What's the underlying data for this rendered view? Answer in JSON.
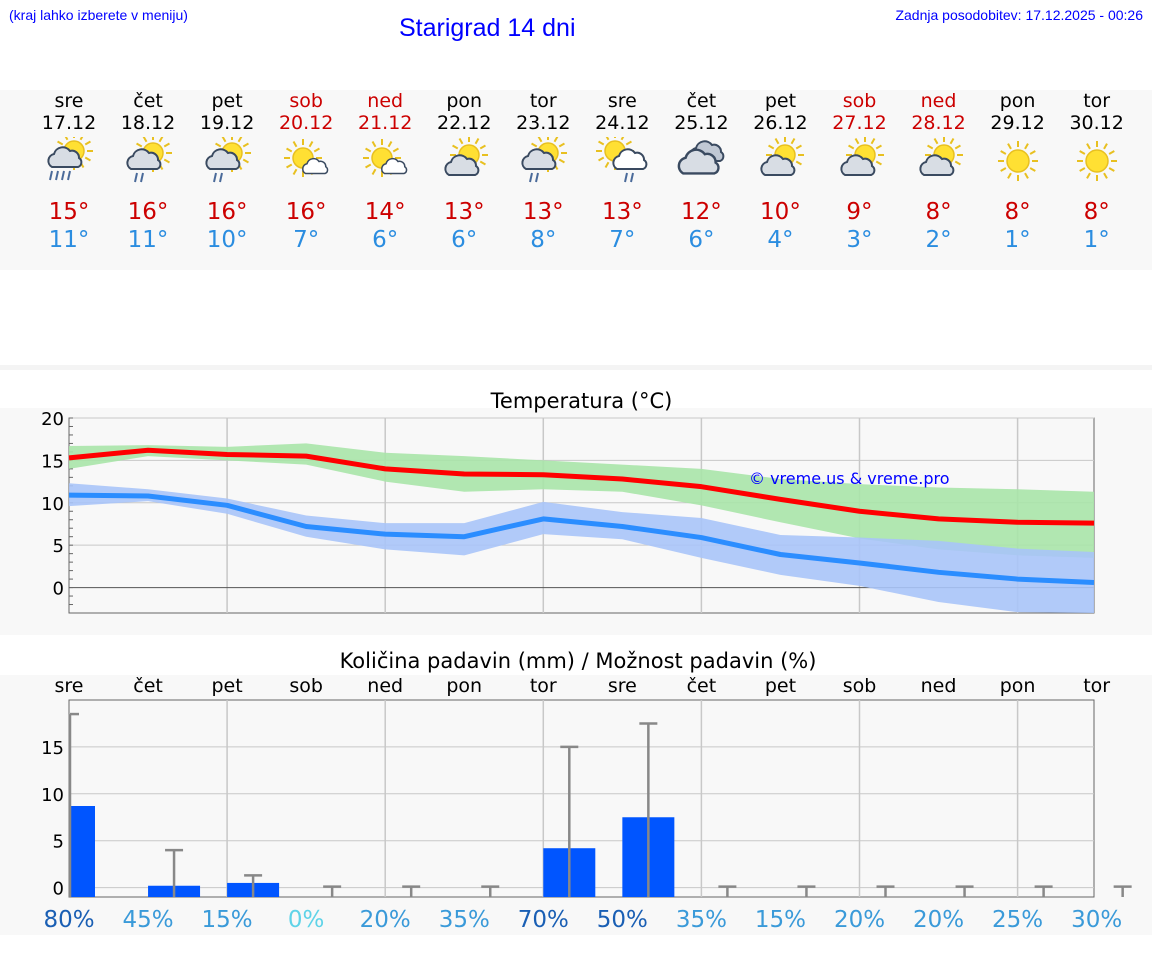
{
  "header": {
    "hint": "(kraj lahko izberete v meniju)",
    "title": "Starigrad 14 dni",
    "updated": "Zadnja posodobitev: 17.12.2025 - 00:26"
  },
  "colors": {
    "max": "#cc0000",
    "min": "#2b8de0",
    "link": "#0000ff"
  },
  "days": [
    {
      "name": "sre",
      "date": "17.12",
      "weekend": false,
      "icon": "sun-cloud-heavy-rain-icon",
      "max": "15°",
      "min": "11°"
    },
    {
      "name": "čet",
      "date": "18.12",
      "weekend": false,
      "icon": "sun-cloud-rain-icon",
      "max": "16°",
      "min": "11°"
    },
    {
      "name": "pet",
      "date": "19.12",
      "weekend": false,
      "icon": "sun-cloud-rain-icon",
      "max": "16°",
      "min": "10°"
    },
    {
      "name": "sob",
      "date": "20.12",
      "weekend": true,
      "icon": "sun-small-cloud-icon",
      "max": "16°",
      "min": "7°"
    },
    {
      "name": "ned",
      "date": "21.12",
      "weekend": true,
      "icon": "sun-small-cloud-icon",
      "max": "14°",
      "min": "6°"
    },
    {
      "name": "pon",
      "date": "22.12",
      "weekend": false,
      "icon": "sun-cloud-icon",
      "max": "13°",
      "min": "6°"
    },
    {
      "name": "tor",
      "date": "23.12",
      "weekend": false,
      "icon": "sun-cloud-rain-icon",
      "max": "13°",
      "min": "8°"
    },
    {
      "name": "sre",
      "date": "24.12",
      "weekend": false,
      "icon": "sun-cloud-rain-right-icon",
      "max": "13°",
      "min": "7°"
    },
    {
      "name": "čet",
      "date": "25.12",
      "weekend": false,
      "icon": "cloudy-icon",
      "max": "12°",
      "min": "6°"
    },
    {
      "name": "pet",
      "date": "26.12",
      "weekend": false,
      "icon": "sun-cloud-icon",
      "max": "10°",
      "min": "4°"
    },
    {
      "name": "sob",
      "date": "27.12",
      "weekend": true,
      "icon": "sun-cloud-icon",
      "max": "9°",
      "min": "3°"
    },
    {
      "name": "ned",
      "date": "28.12",
      "weekend": true,
      "icon": "sun-cloud-icon",
      "max": "8°",
      "min": "2°"
    },
    {
      "name": "pon",
      "date": "29.12",
      "weekend": false,
      "icon": "sun-icon",
      "max": "8°",
      "min": "1°"
    },
    {
      "name": "tor",
      "date": "30.12",
      "weekend": false,
      "icon": "sun-icon",
      "max": "8°",
      "min": "1°"
    }
  ],
  "chart_data": [
    {
      "type": "line",
      "title": "Temperatura (°C)",
      "watermark": "© vreme.us & vreme.pro",
      "ylim": [
        -3,
        20
      ],
      "yticks": [
        0,
        5,
        10,
        15,
        20
      ],
      "x": [
        0,
        1,
        2,
        3,
        4,
        5,
        6,
        7,
        8,
        9,
        10,
        11,
        12,
        13
      ],
      "series": [
        {
          "name": "max",
          "color": "#ff0000",
          "values": [
            15.3,
            16.2,
            15.7,
            15.5,
            14.0,
            13.4,
            13.3,
            12.8,
            11.9,
            10.4,
            9.0,
            8.1,
            7.7,
            7.6
          ],
          "band_low": [
            14.0,
            15.5,
            15.0,
            14.5,
            12.5,
            11.3,
            11.6,
            11.3,
            9.7,
            7.7,
            5.8,
            4.5,
            3.8,
            3.5
          ],
          "band_high": [
            16.7,
            16.8,
            16.6,
            17.0,
            15.9,
            15.5,
            15.0,
            14.5,
            14.0,
            12.8,
            12.2,
            11.8,
            11.6,
            11.3
          ],
          "band_color": "#a8e4a8"
        },
        {
          "name": "min",
          "color": "#2b8dff",
          "values": [
            10.9,
            10.8,
            9.7,
            7.2,
            6.3,
            6.0,
            8.1,
            7.2,
            5.9,
            3.9,
            2.9,
            1.8,
            1.0,
            0.6
          ],
          "band_low": [
            9.6,
            10.2,
            8.7,
            6.0,
            4.5,
            3.8,
            6.3,
            5.7,
            3.5,
            1.5,
            0.2,
            -1.7,
            -2.9,
            -3.0
          ],
          "band_high": [
            12.3,
            11.6,
            10.5,
            8.5,
            7.6,
            7.6,
            10.1,
            8.9,
            8.2,
            6.2,
            5.9,
            5.5,
            4.6,
            4.2
          ],
          "band_color": "#a8c4f8"
        }
      ]
    },
    {
      "type": "bar",
      "title": "Količina padavin (mm) / Možnost padavin (%)",
      "categories": [
        "sre",
        "čet",
        "pet",
        "sob",
        "ned",
        "pon",
        "tor",
        "sre",
        "čet",
        "pet",
        "sob",
        "ned",
        "pon",
        "tor"
      ],
      "ylim": [
        -1,
        20
      ],
      "yticks": [
        0,
        5,
        10,
        15
      ],
      "values": [
        8.7,
        0.2,
        0.5,
        0,
        0,
        0,
        4.2,
        7.5,
        0,
        0,
        0,
        0,
        0,
        0
      ],
      "error_high": [
        18.5,
        4.0,
        1.3,
        0.1,
        0.1,
        0.1,
        15.0,
        17.5,
        0.1,
        0.1,
        0.1,
        0.1,
        0.1,
        0.1
      ],
      "bar_color": "#0055ff",
      "probability": [
        "80%",
        "45%",
        "15%",
        "0%",
        "20%",
        "35%",
        "70%",
        "50%",
        "35%",
        "15%",
        "20%",
        "20%",
        "25%",
        "30%"
      ],
      "probability_colors": [
        "#1a5fb4",
        "#3a9ad9",
        "#3a9ad9",
        "#5fd3e8",
        "#3a9ad9",
        "#3a9ad9",
        "#1a5fb4",
        "#1a5fb4",
        "#3a9ad9",
        "#3a9ad9",
        "#3a9ad9",
        "#3a9ad9",
        "#3a9ad9",
        "#3a9ad9"
      ]
    }
  ]
}
